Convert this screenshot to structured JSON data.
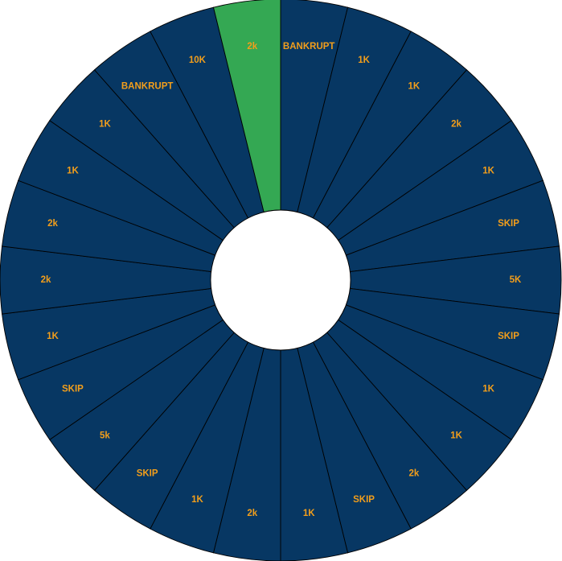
{
  "wheel": {
    "colors": {
      "segment": "#073763",
      "highlight": "#34a853",
      "label": "#f29e1b",
      "border": "#000000",
      "hub": "#ffffff"
    },
    "highlighted_index": 25,
    "segments": [
      {
        "label": "BANKRUPT"
      },
      {
        "label": "1K"
      },
      {
        "label": "1K"
      },
      {
        "label": "2k"
      },
      {
        "label": "1K"
      },
      {
        "label": "SKIP"
      },
      {
        "label": "5K"
      },
      {
        "label": "SKIP"
      },
      {
        "label": "1K"
      },
      {
        "label": "1K"
      },
      {
        "label": "2k"
      },
      {
        "label": "SKIP"
      },
      {
        "label": "1K"
      },
      {
        "label": "2k"
      },
      {
        "label": "1K"
      },
      {
        "label": "SKIP"
      },
      {
        "label": "5k"
      },
      {
        "label": "SKIP"
      },
      {
        "label": "1K"
      },
      {
        "label": "2k"
      },
      {
        "label": "2k"
      },
      {
        "label": "1K"
      },
      {
        "label": "1K"
      },
      {
        "label": "BANKRUPT"
      },
      {
        "label": "10K"
      },
      {
        "label": "2k"
      }
    ]
  }
}
